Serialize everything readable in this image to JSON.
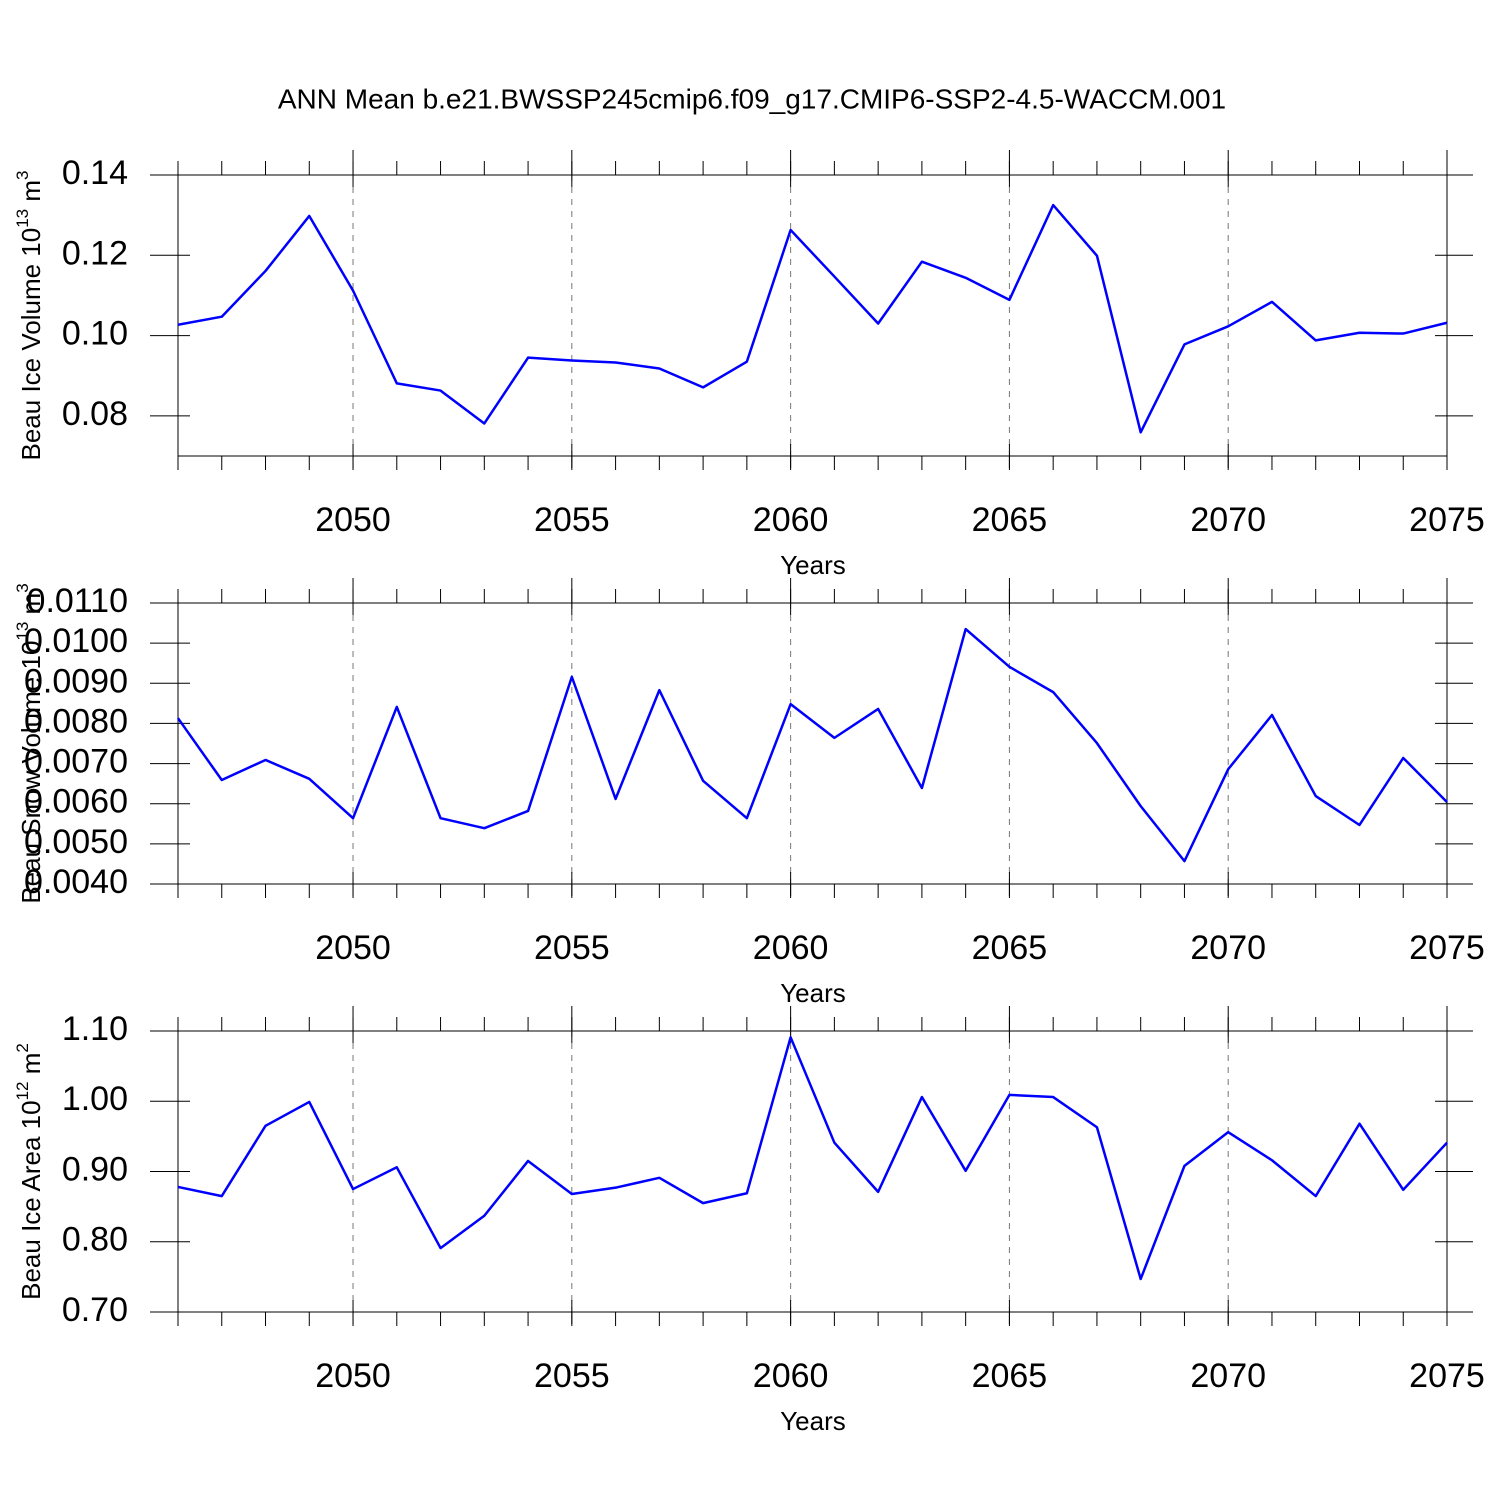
{
  "chart_data": [
    {
      "type": "line",
      "title": "ANN Mean b.e21.BWSSP245cmip6.f09_g17.CMIP6-SSP2-4.5-WACCM.001",
      "xlabel": "Years",
      "ylabel": [
        "Beau Ice Volume 10",
        "13",
        " m",
        "3"
      ],
      "x": [
        2046,
        2047,
        2048,
        2049,
        2050,
        2051,
        2052,
        2053,
        2054,
        2055,
        2056,
        2057,
        2058,
        2059,
        2060,
        2061,
        2062,
        2063,
        2064,
        2065,
        2066,
        2067,
        2068,
        2069,
        2070,
        2071,
        2072,
        2073,
        2074,
        2075
      ],
      "series": [
        {
          "color": "#0000ff",
          "values": [
            0.1027,
            0.1047,
            0.1161,
            0.1298,
            0.1112,
            0.0881,
            0.0863,
            0.0781,
            0.0945,
            0.0938,
            0.0933,
            0.0918,
            0.0871,
            0.0935,
            0.1263,
            0.1147,
            0.103,
            0.1184,
            0.1144,
            0.1089,
            0.1325,
            0.1199,
            0.0759,
            0.0978,
            0.1023,
            0.1084,
            0.0988,
            0.1007,
            0.1005,
            0.1032
          ]
        }
      ],
      "xlim": [
        2046,
        2075
      ],
      "xticks": [
        2050,
        2055,
        2060,
        2065,
        2070,
        2075
      ],
      "ylim": [
        0.07,
        0.14
      ],
      "yticks": [
        0.08,
        0.12,
        0.14,
        {
          "value": 0.1,
          "label": "0.10"
        }
      ],
      "grid": "x"
    },
    {
      "type": "line",
      "xlabel": "Years",
      "ylabel": [
        "Beau Snow Volume 10",
        "13",
        " m",
        "3"
      ],
      "x": [
        2046,
        2047,
        2048,
        2049,
        2050,
        2051,
        2052,
        2053,
        2054,
        2055,
        2056,
        2057,
        2058,
        2059,
        2060,
        2061,
        2062,
        2063,
        2064,
        2065,
        2066,
        2067,
        2068,
        2069,
        2070,
        2071,
        2072,
        2073,
        2074,
        2075
      ],
      "series": [
        {
          "color": "#0000ff",
          "values": [
            0.00813,
            0.00659,
            0.00709,
            0.00662,
            0.00564,
            0.00841,
            0.00564,
            0.00539,
            0.00582,
            0.00916,
            0.00612,
            0.00883,
            0.00657,
            0.00564,
            0.00848,
            0.00764,
            0.00836,
            0.00639,
            0.01035,
            0.00941,
            0.00878,
            0.00751,
            0.00594,
            0.00457,
            0.00686,
            0.00821,
            0.00619,
            0.00547,
            0.00714,
            0.00604
          ]
        }
      ],
      "xlim": [
        2046,
        2075
      ],
      "xticks": [
        2050,
        2055,
        2060,
        2065,
        2070,
        2075
      ],
      "ylim": [
        0.004,
        0.011
      ],
      "yticks": [
        {
          "value": 0.004,
          "label": "0.0040"
        },
        {
          "value": 0.005,
          "label": "0.0050"
        },
        {
          "value": 0.006,
          "label": "0.0060"
        },
        {
          "value": 0.007,
          "label": "0.0070"
        },
        {
          "value": 0.008,
          "label": "0.0080"
        },
        {
          "value": 0.009,
          "label": "0.0090"
        },
        {
          "value": 0.01,
          "label": "0.0100"
        },
        {
          "value": 0.011,
          "label": "0.0110"
        }
      ],
      "grid": "x"
    },
    {
      "type": "line",
      "xlabel": "Years",
      "ylabel": [
        "Beau Ice Area 10",
        "12",
        " m",
        "2"
      ],
      "x": [
        2046,
        2047,
        2048,
        2049,
        2050,
        2051,
        2052,
        2053,
        2054,
        2055,
        2056,
        2057,
        2058,
        2059,
        2060,
        2061,
        2062,
        2063,
        2064,
        2065,
        2066,
        2067,
        2068,
        2069,
        2070,
        2071,
        2072,
        2073,
        2074,
        2075
      ],
      "series": [
        {
          "color": "#0000ff",
          "values": [
            0.878,
            0.865,
            0.965,
            0.999,
            0.875,
            0.906,
            0.791,
            0.837,
            0.915,
            0.868,
            0.877,
            0.891,
            0.855,
            0.869,
            1.091,
            0.941,
            0.871,
            1.006,
            0.901,
            1.009,
            1.006,
            0.963,
            0.747,
            0.908,
            0.956,
            0.916,
            0.865,
            0.968,
            0.874,
            0.941
          ]
        }
      ],
      "xlim": [
        2046,
        2075
      ],
      "xticks": [
        2050,
        2055,
        2060,
        2065,
        2070,
        2075
      ],
      "ylim": [
        0.7,
        1.1
      ],
      "yticks": [
        {
          "value": 0.7,
          "label": "0.70"
        },
        {
          "value": 0.8,
          "label": "0.80"
        },
        {
          "value": 0.9,
          "label": "0.90"
        },
        {
          "value": 1.0,
          "label": "1.00"
        },
        {
          "value": 1.1,
          "label": "1.10"
        }
      ],
      "grid": "x"
    }
  ]
}
